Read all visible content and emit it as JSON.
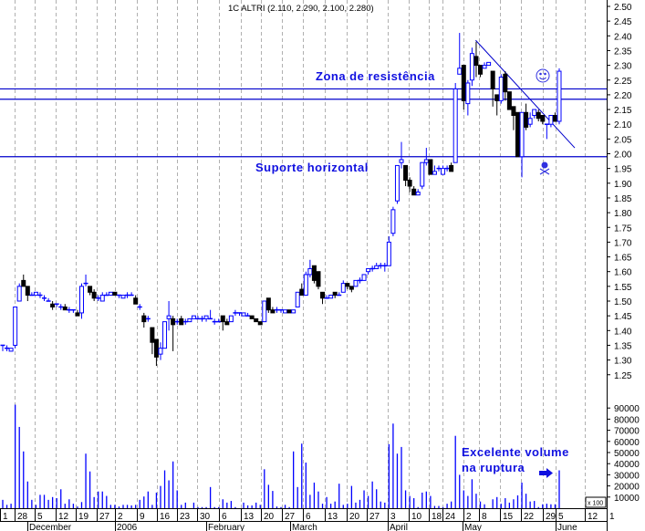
{
  "chart_data": {
    "type": "candlestick",
    "title": "1C ALTRI (2.110, 2.290, 2.100, 2.280)",
    "price_axis": {
      "ylim": [
        1.25,
        2.5
      ],
      "step": 0.05,
      "side": "right"
    },
    "volume_axis": {
      "ticks": [
        90000,
        80000,
        70000,
        60000,
        50000,
        40000,
        30000,
        20000,
        10000
      ],
      "multiplier_label": "x 100"
    },
    "x_ticks": [
      "1",
      "28",
      "5",
      "12",
      "19",
      "27",
      "2",
      "9",
      "16",
      "23",
      "30",
      "6",
      "13",
      "20",
      "27",
      "6",
      "13",
      "20",
      "27",
      "3",
      "10",
      "18",
      "24",
      "2",
      "8",
      "15",
      "22",
      "29",
      "5",
      "12",
      "1"
    ],
    "months": [
      "December",
      "2006",
      "February",
      "March",
      "April",
      "May",
      "June"
    ],
    "grid": "vertical dashed",
    "colors": {
      "up": "#0000ff",
      "down": "#000000",
      "annotation": "#1010e0",
      "lines": "#0000cc"
    },
    "candles_ohlc": [
      [
        1.35,
        1.35,
        1.33,
        1.35
      ],
      [
        1.34,
        1.35,
        1.33,
        1.34
      ],
      [
        1.33,
        1.34,
        1.33,
        1.34
      ],
      [
        1.35,
        1.48,
        1.34,
        1.48
      ],
      [
        1.5,
        1.56,
        1.5,
        1.55
      ],
      [
        1.57,
        1.59,
        1.55,
        1.55
      ],
      [
        1.55,
        1.55,
        1.5,
        1.52
      ],
      [
        1.52,
        1.53,
        1.52,
        1.52
      ],
      [
        1.52,
        1.53,
        1.52,
        1.53
      ],
      [
        1.52,
        1.53,
        1.51,
        1.52
      ],
      [
        1.51,
        1.52,
        1.5,
        1.51
      ],
      [
        1.5,
        1.51,
        1.5,
        1.5
      ],
      [
        1.49,
        1.5,
        1.47,
        1.48
      ],
      [
        1.49,
        1.49,
        1.48,
        1.49
      ],
      [
        1.48,
        1.49,
        1.47,
        1.48
      ],
      [
        1.48,
        1.49,
        1.47,
        1.47
      ],
      [
        1.47,
        1.48,
        1.46,
        1.47
      ],
      [
        1.47,
        1.47,
        1.46,
        1.47
      ],
      [
        1.46,
        1.47,
        1.45,
        1.45
      ],
      [
        1.46,
        1.56,
        1.44,
        1.55
      ],
      [
        1.56,
        1.59,
        1.55,
        1.56
      ],
      [
        1.55,
        1.55,
        1.52,
        1.53
      ],
      [
        1.53,
        1.54,
        1.5,
        1.51
      ],
      [
        1.51,
        1.52,
        1.5,
        1.51
      ],
      [
        1.5,
        1.53,
        1.5,
        1.52
      ],
      [
        1.52,
        1.53,
        1.52,
        1.52
      ],
      [
        1.52,
        1.53,
        1.52,
        1.53
      ],
      [
        1.53,
        1.53,
        1.52,
        1.52
      ],
      [
        1.52,
        1.52,
        1.51,
        1.52
      ],
      [
        1.51,
        1.52,
        1.51,
        1.52
      ],
      [
        1.52,
        1.53,
        1.51,
        1.52
      ],
      [
        1.52,
        1.53,
        1.52,
        1.52
      ],
      [
        1.51,
        1.52,
        1.49,
        1.49
      ],
      [
        1.48,
        1.49,
        1.47,
        1.48
      ],
      [
        1.45,
        1.46,
        1.41,
        1.43
      ],
      [
        1.44,
        1.45,
        1.43,
        1.44
      ],
      [
        1.41,
        1.41,
        1.32,
        1.36
      ],
      [
        1.37,
        1.37,
        1.28,
        1.31
      ],
      [
        1.32,
        1.36,
        1.3,
        1.34
      ],
      [
        1.34,
        1.43,
        1.34,
        1.43
      ],
      [
        1.44,
        1.5,
        1.4,
        1.45
      ],
      [
        1.44,
        1.45,
        1.33,
        1.42
      ],
      [
        1.43,
        1.44,
        1.42,
        1.43
      ],
      [
        1.44,
        1.45,
        1.42,
        1.42
      ],
      [
        1.43,
        1.44,
        1.42,
        1.43
      ],
      [
        1.43,
        1.44,
        1.43,
        1.44
      ],
      [
        1.44,
        1.45,
        1.44,
        1.45
      ],
      [
        1.44,
        1.45,
        1.44,
        1.44
      ],
      [
        1.44,
        1.45,
        1.43,
        1.44
      ],
      [
        1.44,
        1.45,
        1.43,
        1.45
      ],
      [
        1.44,
        1.47,
        1.44,
        1.44
      ],
      [
        1.43,
        1.44,
        1.42,
        1.43
      ],
      [
        1.43,
        1.44,
        1.43,
        1.43
      ],
      [
        1.45,
        1.45,
        1.4,
        1.43
      ],
      [
        1.43,
        1.44,
        1.42,
        1.42
      ],
      [
        1.43,
        1.45,
        1.43,
        1.45
      ],
      [
        1.46,
        1.47,
        1.45,
        1.46
      ],
      [
        1.46,
        1.46,
        1.45,
        1.46
      ],
      [
        1.45,
        1.46,
        1.45,
        1.46
      ],
      [
        1.45,
        1.46,
        1.45,
        1.45
      ],
      [
        1.45,
        1.45,
        1.44,
        1.44
      ],
      [
        1.44,
        1.44,
        1.43,
        1.43
      ],
      [
        1.43,
        1.43,
        1.42,
        1.42
      ],
      [
        1.43,
        1.5,
        1.43,
        1.5
      ],
      [
        1.51,
        1.51,
        1.46,
        1.47
      ],
      [
        1.47,
        1.48,
        1.46,
        1.46
      ],
      [
        1.47,
        1.48,
        1.46,
        1.47
      ],
      [
        1.47,
        1.47,
        1.46,
        1.47
      ],
      [
        1.46,
        1.47,
        1.46,
        1.47
      ],
      [
        1.47,
        1.47,
        1.46,
        1.46
      ],
      [
        1.46,
        1.47,
        1.46,
        1.47
      ],
      [
        1.48,
        1.53,
        1.48,
        1.53
      ],
      [
        1.54,
        1.56,
        1.52,
        1.52
      ],
      [
        1.52,
        1.6,
        1.52,
        1.59
      ],
      [
        1.59,
        1.64,
        1.58,
        1.61
      ],
      [
        1.62,
        1.62,
        1.56,
        1.57
      ],
      [
        1.6,
        1.6,
        1.54,
        1.55
      ],
      [
        1.53,
        1.53,
        1.49,
        1.51
      ],
      [
        1.51,
        1.52,
        1.51,
        1.51
      ],
      [
        1.51,
        1.52,
        1.51,
        1.52
      ],
      [
        1.53,
        1.53,
        1.51,
        1.52
      ],
      [
        1.52,
        1.53,
        1.52,
        1.52
      ],
      [
        1.53,
        1.57,
        1.53,
        1.56
      ],
      [
        1.56,
        1.56,
        1.54,
        1.55
      ],
      [
        1.55,
        1.55,
        1.53,
        1.54
      ],
      [
        1.55,
        1.57,
        1.55,
        1.57
      ],
      [
        1.57,
        1.58,
        1.56,
        1.57
      ],
      [
        1.57,
        1.59,
        1.57,
        1.59
      ],
      [
        1.6,
        1.61,
        1.59,
        1.61
      ],
      [
        1.61,
        1.62,
        1.6,
        1.61
      ],
      [
        1.61,
        1.63,
        1.61,
        1.62
      ],
      [
        1.62,
        1.63,
        1.61,
        1.62
      ],
      [
        1.62,
        1.63,
        1.6,
        1.62
      ],
      [
        1.62,
        1.72,
        1.62,
        1.7
      ],
      [
        1.73,
        1.82,
        1.72,
        1.81
      ],
      [
        1.84,
        1.96,
        1.83,
        1.96
      ],
      [
        1.97,
        2.04,
        1.95,
        1.98
      ],
      [
        1.96,
        1.96,
        1.89,
        1.91
      ],
      [
        1.91,
        1.92,
        1.87,
        1.89
      ],
      [
        1.88,
        1.89,
        1.86,
        1.86
      ],
      [
        1.86,
        1.88,
        1.86,
        1.87
      ],
      [
        1.89,
        1.97,
        1.88,
        1.97
      ],
      [
        1.97,
        2.02,
        1.96,
        1.98
      ],
      [
        1.98,
        1.98,
        1.93,
        1.93
      ],
      [
        1.93,
        1.96,
        1.93,
        1.94
      ],
      [
        1.95,
        1.96,
        1.94,
        1.95
      ],
      [
        1.93,
        1.96,
        1.93,
        1.95
      ],
      [
        1.95,
        1.96,
        1.94,
        1.95
      ],
      [
        1.96,
        1.97,
        1.94,
        1.94
      ],
      [
        1.97,
        2.24,
        1.97,
        2.22
      ],
      [
        2.27,
        2.41,
        2.27,
        2.29
      ],
      [
        2.3,
        2.3,
        2.15,
        2.18
      ],
      [
        2.17,
        2.25,
        2.13,
        2.24
      ],
      [
        2.25,
        2.36,
        2.23,
        2.34
      ],
      [
        2.33,
        2.38,
        2.26,
        2.3
      ],
      [
        2.3,
        2.3,
        2.26,
        2.27
      ],
      [
        2.29,
        2.31,
        2.29,
        2.3
      ],
      [
        2.3,
        2.31,
        2.3,
        2.31
      ],
      [
        2.28,
        2.28,
        2.16,
        2.22
      ],
      [
        2.2,
        2.2,
        2.13,
        2.18
      ],
      [
        2.18,
        2.27,
        2.17,
        2.26
      ],
      [
        2.27,
        2.28,
        2.18,
        2.21
      ],
      [
        2.21,
        2.21,
        2.15,
        2.15
      ],
      [
        2.16,
        2.16,
        2.08,
        2.13
      ],
      [
        2.14,
        2.14,
        1.99,
        1.99
      ],
      [
        1.99,
        2.14,
        1.92,
        2.14
      ],
      [
        2.14,
        2.17,
        2.08,
        2.09
      ],
      [
        2.1,
        2.14,
        2.09,
        2.12
      ],
      [
        2.13,
        2.15,
        2.12,
        2.15
      ],
      [
        2.14,
        2.15,
        2.11,
        2.12
      ],
      [
        2.13,
        2.13,
        2.1,
        2.11
      ],
      [
        2.1,
        2.1,
        2.05,
        2.1
      ],
      [
        2.1,
        2.13,
        2.09,
        2.13
      ],
      [
        2.13,
        2.14,
        2.11,
        2.11
      ],
      [
        2.11,
        2.29,
        2.1,
        2.28
      ]
    ],
    "volumes": [
      7500,
      3000,
      4000,
      93000,
      73000,
      51000,
      24000,
      7500,
      3000,
      12000,
      12000,
      7500,
      10000,
      9000,
      17000,
      4000,
      8000,
      4000,
      1500,
      5500,
      49000,
      33000,
      10000,
      15000,
      15000,
      11000,
      3000,
      3000,
      1500,
      3000,
      3000,
      2500,
      3000,
      7500,
      10500,
      15000,
      3000,
      14000,
      20000,
      34000,
      25000,
      42000,
      16000,
      3000,
      5000,
      0,
      5000,
      1000,
      1000,
      1000,
      19000,
      1000,
      1000,
      8000,
      5000,
      6500,
      1000,
      0,
      5000,
      2500,
      2500,
      5000,
      3000,
      35000,
      21000,
      15500,
      1500,
      1000,
      3000,
      1000,
      51000,
      19000,
      58000,
      41000,
      12000,
      23000,
      15000,
      4000,
      10000,
      4000,
      6000,
      22000,
      3000,
      4000,
      20000,
      5000,
      7500,
      16000,
      11000,
      24000,
      17000,
      6000,
      5000,
      57500,
      76000,
      49000,
      55000,
      16000,
      11000,
      9000,
      1000,
      14000,
      15000,
      11000,
      2000,
      2000,
      1000,
      4000,
      6000,
      65000,
      30000,
      16000,
      11000,
      26000,
      13000,
      6000,
      3500,
      0,
      8000,
      10000,
      4000,
      9000,
      5000,
      8000,
      11500,
      23000,
      13000,
      6000,
      6500,
      1000,
      3500,
      4000,
      3500,
      3500,
      34000
    ],
    "horizontal_lines": [
      2.22,
      2.185,
      1.99
    ],
    "trendline": {
      "from_price": 2.385,
      "to_price": 2.02
    },
    "annotations": {
      "resistance": "Zona de resistência",
      "support": "Suporte horizontal",
      "volume_line1": "Excelente volume",
      "volume_line2": "na ruptura"
    },
    "icons": [
      "smiley-icon",
      "skull-icon",
      "arrow-right-icon"
    ]
  }
}
